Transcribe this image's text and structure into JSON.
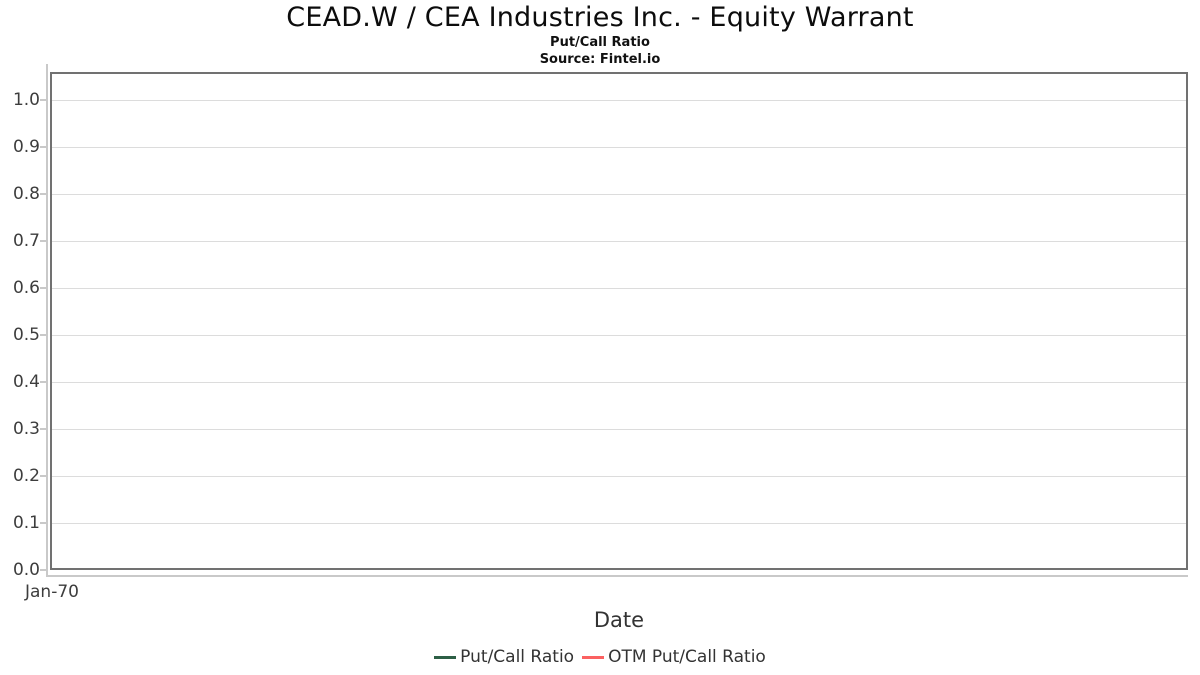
{
  "header": {
    "title": "CEAD.W / CEA Industries Inc. - Equity Warrant",
    "subtitle": "Put/Call Ratio",
    "source": "Source: Fintel.io"
  },
  "chart_data": {
    "type": "line",
    "title": "CEAD.W / CEA Industries Inc. - Equity Warrant",
    "subtitle": "Put/Call Ratio",
    "source_note": "Source: Fintel.io",
    "xlabel": "Date",
    "ylabel": "",
    "ylim": [
      0.0,
      1.0
    ],
    "y_ticks": [
      1.0,
      0.9,
      0.8,
      0.7,
      0.6,
      0.5,
      0.4,
      0.3,
      0.2,
      0.1,
      0.0
    ],
    "y_tick_labels": [
      "1.0",
      "0.9",
      "0.8",
      "0.7",
      "0.6",
      "0.5",
      "0.4",
      "0.3",
      "0.2",
      "0.1",
      "0.0"
    ],
    "x_tick_labels": [
      "Jan-70"
    ],
    "grid": "horizontal",
    "legend_position": "bottom-center",
    "series": [
      {
        "name": "Put/Call Ratio",
        "color": "#2d5f46",
        "x": [],
        "values": []
      },
      {
        "name": "OTM Put/Call Ratio",
        "color": "#fb6161",
        "x": [],
        "values": []
      }
    ]
  },
  "colors": {
    "panel_border": "#717171",
    "gridline": "#dcdcdc",
    "axis_line": "#c9c9c9",
    "tick_text": "#3d3d3d",
    "title_text": "#0c0c0c"
  }
}
